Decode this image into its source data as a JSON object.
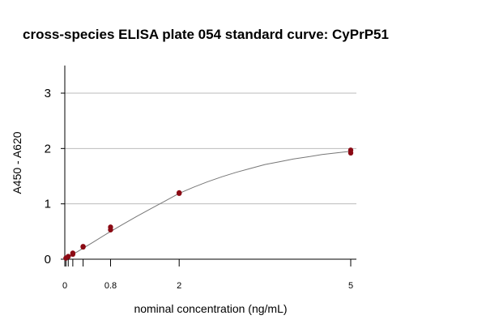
{
  "chart_data": {
    "type": "scatter",
    "title": "cross-species ELISA plate 054 standard curve: CyPrP51",
    "xlabel": "nominal concentration (ng/mL)",
    "ylabel": "A450 - A620",
    "xlim": [
      0,
      5
    ],
    "ylim": [
      0,
      3.5
    ],
    "x_ticks": [
      0,
      0.02,
      0.06,
      0.14,
      0.32,
      0.8,
      2,
      5
    ],
    "x_tick_labels": [
      {
        "value": 0,
        "label": "0"
      },
      {
        "value": 0.8,
        "label": "0.8"
      },
      {
        "value": 2,
        "label": "2"
      },
      {
        "value": 5,
        "label": "5"
      }
    ],
    "y_ticks": [
      0,
      1,
      2,
      3
    ],
    "grid": "horizontal",
    "point_color": "#8b0a14",
    "curve_color": "#777777",
    "points": [
      {
        "x": 0.02,
        "y": 0.02
      },
      {
        "x": 0.06,
        "y": 0.05
      },
      {
        "x": 0.14,
        "y": 0.09
      },
      {
        "x": 0.14,
        "y": 0.11
      },
      {
        "x": 0.32,
        "y": 0.22
      },
      {
        "x": 0.32,
        "y": 0.23
      },
      {
        "x": 0.8,
        "y": 0.53
      },
      {
        "x": 0.8,
        "y": 0.58
      },
      {
        "x": 2,
        "y": 1.19
      },
      {
        "x": 2,
        "y": 1.2
      },
      {
        "x": 5,
        "y": 1.92
      },
      {
        "x": 5,
        "y": 1.97
      }
    ],
    "fit_curve": {
      "x": [
        0,
        0.25,
        0.5,
        0.75,
        1,
        1.25,
        1.5,
        1.75,
        2,
        2.25,
        2.5,
        2.75,
        3,
        3.25,
        3.5,
        3.75,
        4,
        4.25,
        4.5,
        4.75,
        5
      ],
      "y": [
        0,
        0.155,
        0.31,
        0.47,
        0.62,
        0.77,
        0.91,
        1.05,
        1.19,
        1.3,
        1.4,
        1.49,
        1.57,
        1.64,
        1.71,
        1.76,
        1.81,
        1.85,
        1.89,
        1.92,
        1.95
      ]
    }
  }
}
